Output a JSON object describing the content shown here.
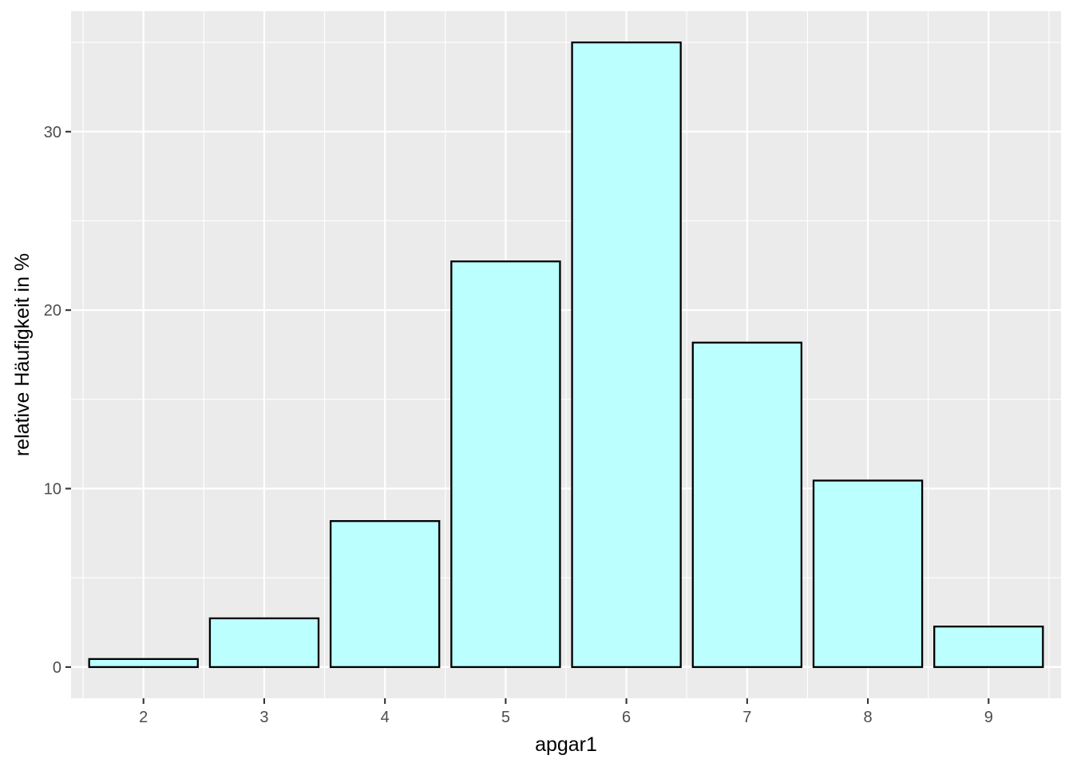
{
  "chart_data": {
    "type": "bar",
    "xlabel": "apgar1",
    "ylabel": "relative Häufigkeit in %",
    "categories": [
      "2",
      "3",
      "4",
      "5",
      "6",
      "7",
      "8",
      "9"
    ],
    "values": [
      0.45,
      2.73,
      8.18,
      22.73,
      35.0,
      18.18,
      10.45,
      2.27
    ],
    "ylim": [
      -1.75,
      36.75
    ],
    "yticks": [
      "0",
      "10",
      "20",
      "30"
    ],
    "grid": true,
    "colors": {
      "panel_background": "#ebebeb",
      "grid": "#ffffff",
      "bar_fill": "#bbffff",
      "bar_stroke": "#000000",
      "tick_text": "#4d4d4d",
      "tick_mark": "#333333"
    }
  }
}
